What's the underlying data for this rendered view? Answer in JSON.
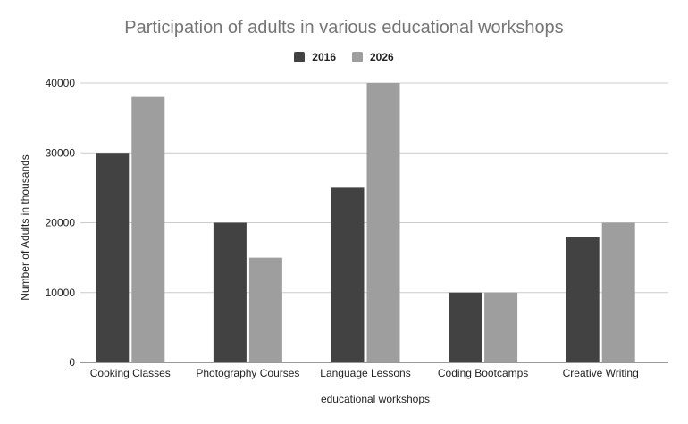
{
  "chart_data": {
    "type": "bar",
    "title": "Participation of adults in various educational workshops",
    "xlabel": "educational workshops",
    "ylabel": "Number of Adults in thousands",
    "categories": [
      "Cooking Classes",
      "Photography Courses",
      "Language Lessons",
      "Coding Bootcamps",
      "Creative Writing"
    ],
    "series": [
      {
        "name": "2016",
        "values": [
          30000,
          20000,
          25000,
          10000,
          18000
        ],
        "color": "#424242"
      },
      {
        "name": "2026",
        "values": [
          38000,
          15000,
          40000,
          10000,
          20000
        ],
        "color": "#9e9e9e"
      }
    ],
    "ylim": [
      0,
      40000
    ],
    "yticks": [
      "0",
      "10000",
      "20000",
      "30000",
      "40000"
    ],
    "grid": true,
    "legend_position": "top"
  }
}
